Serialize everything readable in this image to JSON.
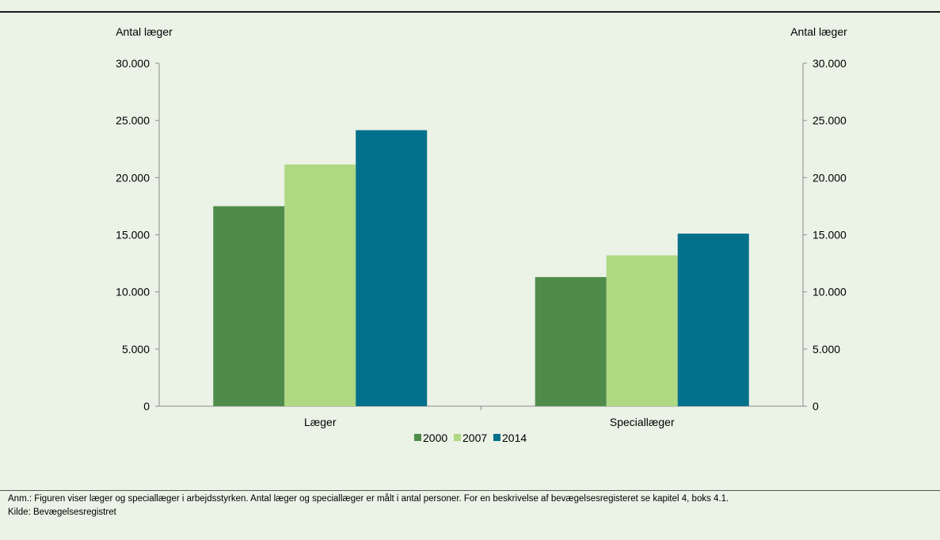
{
  "chart_data": {
    "type": "bar",
    "categories": [
      "Læger",
      "Speciallæger"
    ],
    "series": [
      {
        "name": "2000",
        "color": "#4f8c4b",
        "values": [
          17500,
          11300
        ]
      },
      {
        "name": "2007",
        "color": "#aed882",
        "values": [
          21150,
          13200
        ]
      },
      {
        "name": "2014",
        "color": "#02708a",
        "values": [
          24150,
          15100
        ]
      }
    ],
    "ylabel_left": "Antal læger",
    "ylabel_right": "Antal læger",
    "ylim": [
      0,
      30000
    ],
    "yticks": [
      0,
      5000,
      10000,
      15000,
      20000,
      25000,
      30000
    ],
    "ytick_labels": [
      "0",
      "5.000",
      "10.000",
      "15.000",
      "20.000",
      "25.000",
      "30.000"
    ],
    "legend": "bottom-center",
    "grid": false
  },
  "note": "Anm.: Figuren viser læger og speciallæger i arbejdsstyrken. Antal læger og speciallæger er målt i antal personer. For en beskrivelse af bevægelsesregisteret se kapitel 4, boks 4.1.",
  "source": "Kilde: Bevægelsesregistret"
}
